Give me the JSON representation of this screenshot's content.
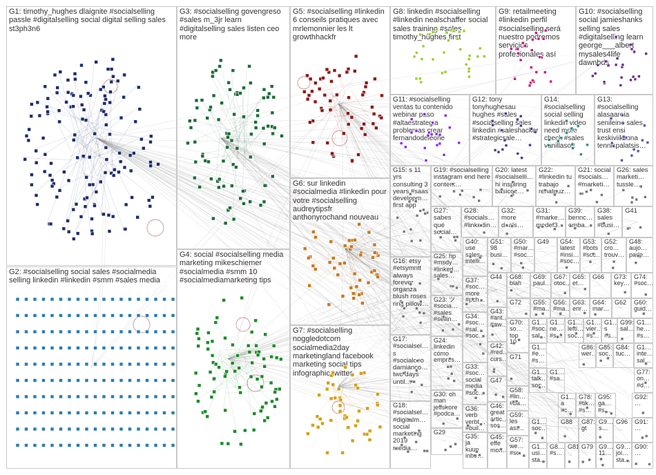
{
  "graph": {
    "groups": [
      {
        "id": "G1",
        "label": "G1: timothy_hughes dlaignite #socialselling passle #digitalselling social digital selling sales st3ph3n6",
        "color": "#1f2d6b"
      },
      {
        "id": "G2",
        "label": "G2: #socialselling social sales #socialmedia selling linkedin #linkedin #smm #sales media",
        "color": "#2b7bb0"
      },
      {
        "id": "G3",
        "label": "G3: #socialselling govengreso #sales m_3jr learn #digitalselling sales listen ceo more",
        "color": "#1e6b3c"
      },
      {
        "id": "G4",
        "label": "G4: social #socialselling media marketing mikeschiemer #socialmedia #smm 10 #socialmediamarketing tips",
        "color": "#1e8a2a"
      },
      {
        "id": "G5",
        "label": "G5: #socialselling #linkedin 6 conseils pratiques avec mrlemonnier les lt growthhackfr",
        "color": "#8b1a1a"
      },
      {
        "id": "G6",
        "label": "G6: sur linkedin #socialmedia #linkedin pour votre #socialselling audreytipsfr anthonyrochand nouveau",
        "color": "#c8781e"
      },
      {
        "id": "G7",
        "label": "G7: #socialselling noggledotcom socialmedia2day marketingland facebook marketing social tips infographic twitter",
        "color": "#d4a017"
      },
      {
        "id": "G8",
        "label": "G8: linkedin #socialselling #linkedin nealschaffer social sales training #sales timothy_hughes first",
        "color": "#9acd32"
      },
      {
        "id": "G9",
        "label": "G9: retailmeeting #linkedin perfil #socialselling será nuestro podremos servicios profesionales así",
        "color": "#c71585"
      },
      {
        "id": "G10",
        "label": "G10: #socialselling social jamieshanks selling sales #digitalselling learn george___albert mysales4life dawnbds",
        "color": "#6b2d8b"
      },
      {
        "id": "G11",
        "label": "G11: #socialselling ventas tu contenido webinar paso #altaestrategia problemas crear fernandodeleone",
        "color": "#8a2be2"
      },
      {
        "id": "G12",
        "label": "G12: tony tonyhughesau hughes #sales #socialselling sales linkedin #saleshacker #strategicsale…",
        "color": "#4b3b8b"
      },
      {
        "id": "G14",
        "label": "G14: #socialselling social selling linkedin video need more check #sales vanillasoft",
        "color": "#2e8b8b"
      },
      {
        "id": "G13",
        "label": "G13: #socialselling alasaareia senileino sales trust ensi keskiviikkona tennispalatsis…",
        "color": "#5a5aa0"
      },
      {
        "id": "G15",
        "label": "G15: s 11 yrs consulting 3 years #saas developm… first app",
        "color": "#777777"
      },
      {
        "id": "G19",
        "label": "G19: #socialselling instagram end here content…",
        "color": "#777777"
      },
      {
        "id": "G20",
        "label": "G20: latest #socialselli… hi inspiring basicoz…",
        "color": "#777777"
      },
      {
        "id": "G22",
        "label": "G22: #linkedin tu trabajo renatguz…",
        "color": "#777777"
      },
      {
        "id": "G21",
        "label": "G21: social #socials… #marketi…",
        "color": "#777777"
      },
      {
        "id": "G26",
        "label": "G26: sales marketi… tussle…",
        "color": "#777777"
      },
      {
        "id": "G27",
        "label": "G27: sabes qué social…",
        "color": "#777777"
      },
      {
        "id": "G28",
        "label": "G28: #socials… #linkedin…",
        "color": "#777777"
      },
      {
        "id": "G32",
        "label": "G32: more deals…",
        "color": "#777777"
      },
      {
        "id": "G31",
        "label": "G31: #marke… medef3…",
        "color": "#777777"
      },
      {
        "id": "G39",
        "label": "G39: bennc… omba…",
        "color": "#777777"
      },
      {
        "id": "G38",
        "label": "G38: sales #busi…",
        "color": "#777777"
      },
      {
        "id": "G41",
        "label": "G41",
        "color": "#777777"
      },
      {
        "id": "G25",
        "label": "G25: hp #msdy… #linked… sales…",
        "color": "#777777"
      },
      {
        "id": "G40",
        "label": "G40: use sales intelli…",
        "color": "#777777"
      },
      {
        "id": "G51",
        "label": "G51: 98 busi…",
        "color": "#777777"
      },
      {
        "id": "G50",
        "label": "G50: #mar… #soc…",
        "color": "#777777"
      },
      {
        "id": "G49",
        "label": "G49",
        "color": "#777777"
      },
      {
        "id": "G54",
        "label": "G54: latest #insi… #soc…",
        "color": "#777777"
      },
      {
        "id": "G53",
        "label": "G53: #bots #soc…",
        "color": "#777777"
      },
      {
        "id": "G52",
        "label": "G52: cro… trouv…",
        "color": "#777777"
      },
      {
        "id": "G48",
        "label": "G48: aujo… parle…",
        "color": "#777777"
      },
      {
        "id": "G16",
        "label": "G16: etsy #etsymntt always forever organza blush roses ring pillow…",
        "color": "#777777"
      },
      {
        "id": "G37",
        "label": "G37: #soc… more #pch…",
        "color": "#777777"
      },
      {
        "id": "G44",
        "label": "G44",
        "color": "#777777"
      },
      {
        "id": "G68",
        "label": "G68: blah",
        "color": "#777777"
      },
      {
        "id": "G69",
        "label": "G69: paul…",
        "color": "#777777"
      },
      {
        "id": "G67",
        "label": "G67: otoc…",
        "color": "#777777"
      },
      {
        "id": "G65",
        "label": "G65: et…",
        "color": "#777777"
      },
      {
        "id": "G66",
        "label": "G66",
        "color": "#777777"
      },
      {
        "id": "G73",
        "label": "G73: key…",
        "color": "#777777"
      },
      {
        "id": "G74",
        "label": "G74: #soc…",
        "color": "#777777"
      },
      {
        "id": "G23",
        "label": "G23: ツ #socia… #sales #sellin…",
        "color": "#777777"
      },
      {
        "id": "G34",
        "label": "G34: #soc… #sal… #soc…",
        "color": "#777777"
      },
      {
        "id": "G43",
        "label": "G43: #ant… #aw…",
        "color": "#777777"
      },
      {
        "id": "G72",
        "label": "G72",
        "color": "#777777"
      },
      {
        "id": "G55",
        "label": "G55: #ma…",
        "color": "#777777"
      },
      {
        "id": "G56",
        "label": "G56: #ma…",
        "color": "#777777"
      },
      {
        "id": "G63",
        "label": "G63: enr…",
        "color": "#777777"
      },
      {
        "id": "G64",
        "label": "G64: mar…",
        "color": "#777777"
      },
      {
        "id": "G62",
        "label": "G62",
        "color": "#777777"
      },
      {
        "id": "G60",
        "label": "G60: guid…",
        "color": "#777777"
      },
      {
        "id": "G17",
        "label": "G17: #socialsel… s #socialceo damianco… two days until…",
        "color": "#777777"
      },
      {
        "id": "G24",
        "label": "G24: linkedin cómo empres…",
        "color": "#777777"
      },
      {
        "id": "G42",
        "label": "G42: #red… curs…",
        "color": "#777777"
      },
      {
        "id": "G70",
        "label": "G70: so… top 10",
        "color": "#777777"
      },
      {
        "id": "G71",
        "label": "G71",
        "color": "#777777"
      },
      {
        "id": "G1_a",
        "label": "G1… #soc… sal…",
        "color": "#777777"
      },
      {
        "id": "G1_b",
        "label": "G1… ne… #s…",
        "color": "#777777"
      },
      {
        "id": "G1_c",
        "label": "G1… lefti… soc…",
        "color": "#777777"
      },
      {
        "id": "G1_d",
        "label": "G1… vier… #s…",
        "color": "#777777"
      },
      {
        "id": "G1_e",
        "label": "G1… s #s…",
        "color": "#777777"
      },
      {
        "id": "G99",
        "label": "G99: sal…",
        "color": "#777777"
      },
      {
        "id": "G1_f",
        "label": "G1… he… #s…",
        "color": "#777777"
      },
      {
        "id": "G1_g",
        "label": "G1… inte… sal…",
        "color": "#777777"
      },
      {
        "id": "G33",
        "label": "G33: #soc… social media #soc…",
        "color": "#777777"
      },
      {
        "id": "G47",
        "label": "G47",
        "color": "#777777"
      },
      {
        "id": "G1_h",
        "label": "G1… #e… #s…",
        "color": "#777777"
      },
      {
        "id": "G86",
        "label": "G86: wer…",
        "color": "#777777"
      },
      {
        "id": "G85",
        "label": "G85: soc…",
        "color": "#777777"
      },
      {
        "id": "G84",
        "label": "G84: tuc…",
        "color": "#777777"
      },
      {
        "id": "G77",
        "label": "G77: on… #d…",
        "color": "#777777"
      },
      {
        "id": "G30",
        "label": "G30: oh man jeffshore #podca…",
        "color": "#777777"
      },
      {
        "id": "G36",
        "label": "G36: verb verbt… #buil…",
        "color": "#777777"
      },
      {
        "id": "G58",
        "label": "G58: #lin… #ba…",
        "color": "#777777"
      },
      {
        "id": "G1_i",
        "label": "G1… talk… soc…",
        "color": "#777777"
      },
      {
        "id": "G1_j",
        "label": "G1… #sa…",
        "color": "#777777"
      },
      {
        "id": "G1_k",
        "label": "G1… a #c…",
        "color": "#777777"
      },
      {
        "id": "G78",
        "label": "G78: #tik… #s…",
        "color": "#777777"
      },
      {
        "id": "G95",
        "label": "G95: ga… #s…",
        "color": "#777777"
      },
      {
        "id": "G18",
        "label": "G18: #socialsel… #digitalm… social marketing 2019 media…",
        "color": "#777777"
      },
      {
        "id": "G29",
        "label": "G29",
        "color": "#777777"
      },
      {
        "id": "G46",
        "label": "G46: great artic… soc…",
        "color": "#777777"
      },
      {
        "id": "G59",
        "label": "G59: les ast…",
        "color": "#777777"
      },
      {
        "id": "G1_l",
        "label": "G1… soc…",
        "color": "#777777"
      },
      {
        "id": "G87",
        "label": "G87: gt",
        "color": "#777777"
      },
      {
        "id": "G9_a",
        "label": "G9… s…",
        "color": "#777777"
      },
      {
        "id": "G96",
        "label": "G96",
        "color": "#777777"
      },
      {
        "id": "G88",
        "label": "G88",
        "color": "#777777"
      },
      {
        "id": "G35",
        "label": "G35: ja kuun inbo…",
        "color": "#777777"
      },
      {
        "id": "G45",
        "label": "G45: effe mon…",
        "color": "#777777"
      },
      {
        "id": "G57",
        "label": "G57: we… #so…",
        "color": "#777777"
      },
      {
        "id": "G1_m",
        "label": "G1… usi… sta…",
        "color": "#777777"
      },
      {
        "id": "G8_a",
        "label": "G8… #s…",
        "color": "#777777"
      },
      {
        "id": "G81",
        "label": "G81",
        "color": "#777777"
      },
      {
        "id": "G79",
        "label": "G79",
        "color": "#777777"
      },
      {
        "id": "G9_b",
        "label": "G9… 11…",
        "color": "#777777"
      },
      {
        "id": "G9_c",
        "label": "G9… joi… sta…",
        "color": "#777777"
      },
      {
        "id": "G92",
        "label": "G92: …",
        "color": "#777777"
      },
      {
        "id": "G91",
        "label": "G91: …",
        "color": "#777777"
      },
      {
        "id": "G90",
        "label": "G90: …",
        "color": "#777777"
      }
    ]
  }
}
